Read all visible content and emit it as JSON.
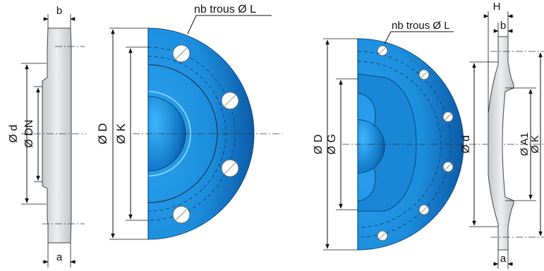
{
  "colors": {
    "flange_blue": "#1f8ee0",
    "flange_dark": "#0d5ea8",
    "steel_grey": "#d7d9dd",
    "line": "#111111"
  },
  "left_figure": {
    "profile_labels": {
      "b": "b",
      "a": "a",
      "d": "Ø d",
      "dn": "Ø DN"
    },
    "face_labels": {
      "holes": "nb trous Ø L",
      "d_outer": "Ø D",
      "k": "Ø K"
    }
  },
  "right_figure": {
    "face_labels": {
      "holes": "nb trous Ø L",
      "d_outer": "Ø D",
      "g": "Ø G"
    },
    "profile_labels": {
      "d": "Ø d",
      "h": "H",
      "b": "b",
      "a": "a",
      "a1": "Ø A1",
      "k": "Ø K"
    }
  }
}
